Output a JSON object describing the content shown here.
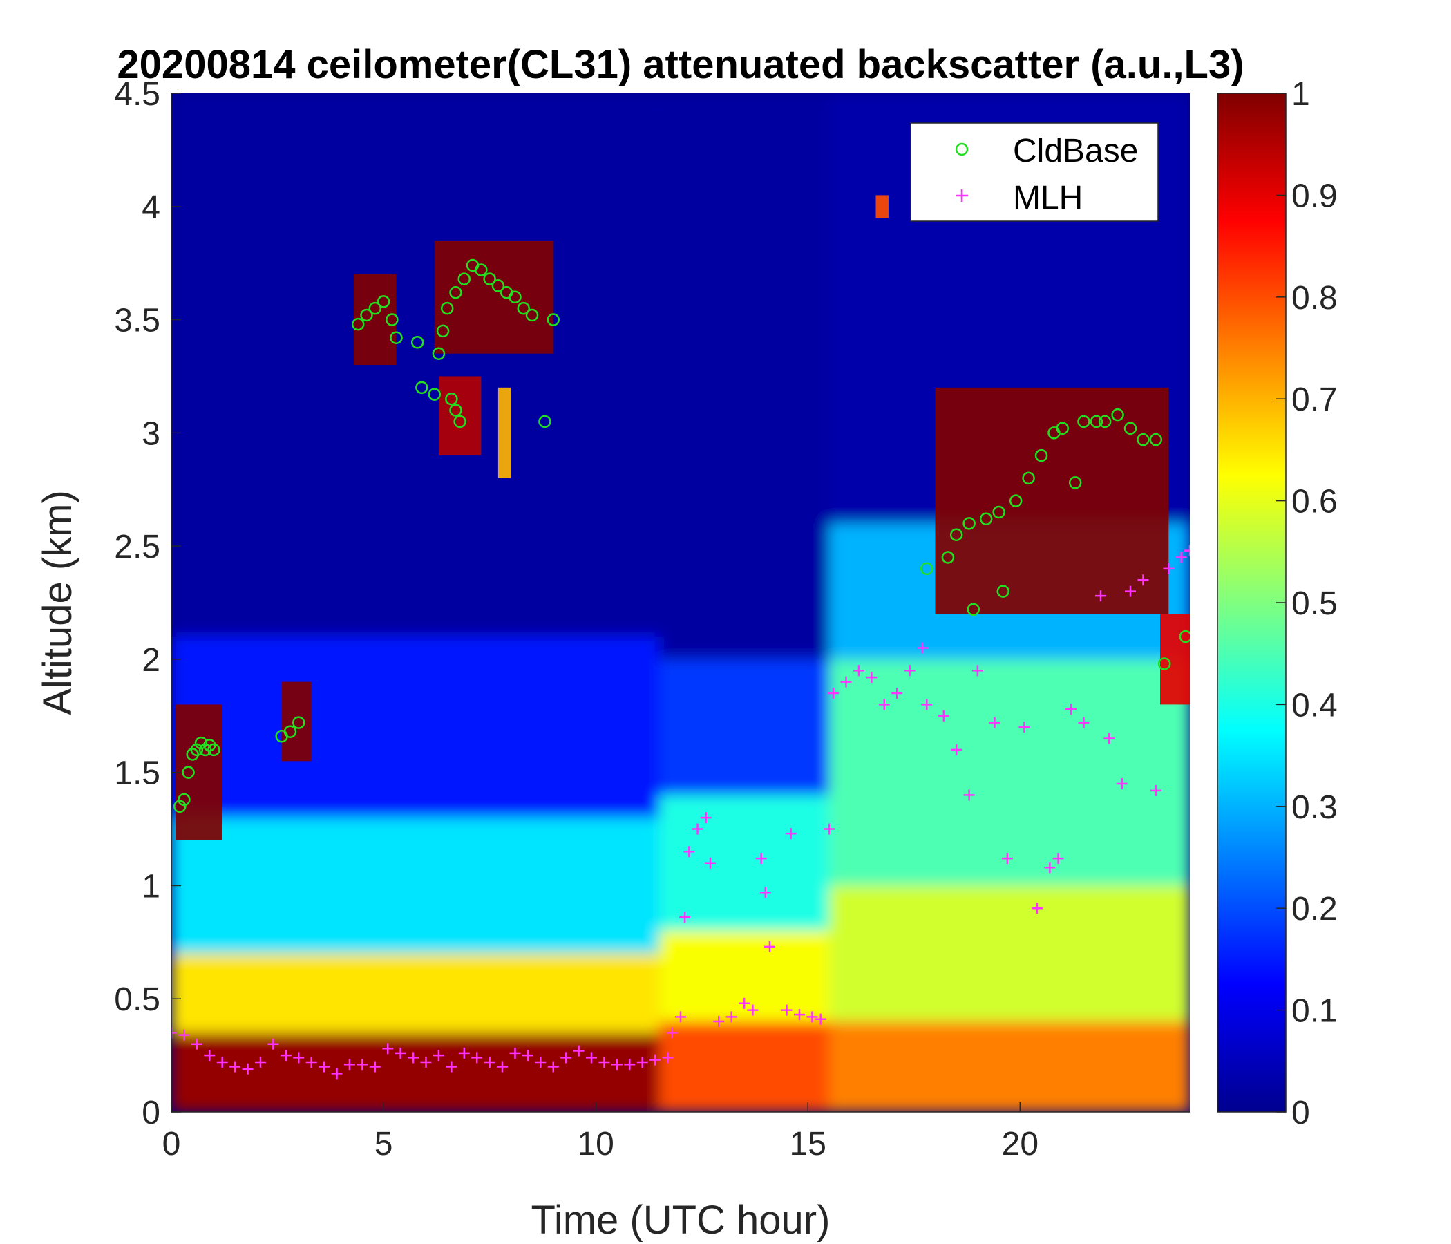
{
  "chart_data": {
    "type": "heatmap",
    "title": "20200814 ceilometer(CL31) attenuated backscatter (a.u.,L3)",
    "xlabel": "Time (UTC hour)",
    "ylabel": "Altitude (km)",
    "xlim": [
      0,
      24
    ],
    "ylim": [
      0,
      4.5
    ],
    "xticks": [
      0,
      5,
      10,
      15,
      20
    ],
    "xtick_labels": [
      "0",
      "5",
      "10",
      "15",
      "20"
    ],
    "yticks": [
      0,
      0.5,
      1,
      1.5,
      2,
      2.5,
      3,
      3.5,
      4,
      4.5
    ],
    "ytick_labels": [
      "0",
      "0.5",
      "1",
      "1.5",
      "2",
      "2.5",
      "3",
      "3.5",
      "4",
      "4.5"
    ],
    "colorbar": {
      "colormap": "jet",
      "clim": [
        0,
        1
      ],
      "ticks": [
        0,
        0.1,
        0.2,
        0.3,
        0.4,
        0.5,
        0.6,
        0.7,
        0.8,
        0.9,
        1
      ],
      "tick_labels": [
        "0",
        "0.1",
        "0.2",
        "0.3",
        "0.4",
        "0.5",
        "0.6",
        "0.7",
        "0.8",
        "0.9",
        "1"
      ]
    },
    "legend": {
      "location": "top-right",
      "entries": [
        {
          "label": "CldBase",
          "marker": "circle",
          "color": "#22e01f"
        },
        {
          "label": "MLH",
          "marker": "plus",
          "color": "#ff33ff"
        }
      ]
    },
    "background_field": {
      "description_levels": "approximate backscatter levels by altitude band",
      "segments": [
        {
          "x": [
            0,
            11.5
          ],
          "levels": [
            [
              0,
              0.35,
              0.98
            ],
            [
              0.35,
              0.7,
              0.65
            ],
            [
              0.7,
              1.3,
              0.35
            ],
            [
              1.3,
              2.1,
              0.15
            ],
            [
              2.1,
              4.5,
              0.02
            ]
          ]
        },
        {
          "x": [
            11.5,
            15.5
          ],
          "levels": [
            [
              0,
              0.4,
              0.8
            ],
            [
              0.4,
              0.8,
              0.62
            ],
            [
              0.8,
              1.4,
              0.4
            ],
            [
              1.4,
              2.0,
              0.18
            ],
            [
              2.0,
              4.5,
              0.02
            ]
          ]
        },
        {
          "x": [
            15.5,
            24
          ],
          "levels": [
            [
              0,
              0.4,
              0.75
            ],
            [
              0.4,
              1.0,
              0.58
            ],
            [
              1.0,
              2.0,
              0.45
            ],
            [
              2.0,
              2.6,
              0.3
            ],
            [
              2.6,
              4.5,
              0.03
            ]
          ]
        }
      ]
    },
    "cloud_patches": [
      {
        "x": [
          0.1,
          1.2
        ],
        "y": [
          1.2,
          1.8
        ],
        "value": 1.0
      },
      {
        "x": [
          2.6,
          3.3
        ],
        "y": [
          1.55,
          1.9
        ],
        "value": 1.0
      },
      {
        "x": [
          4.3,
          5.3
        ],
        "y": [
          3.3,
          3.7
        ],
        "value": 1.0
      },
      {
        "x": [
          6.2,
          9.0
        ],
        "y": [
          3.35,
          3.85
        ],
        "value": 1.0
      },
      {
        "x": [
          6.3,
          7.3
        ],
        "y": [
          2.9,
          3.25
        ],
        "value": 0.95
      },
      {
        "x": [
          7.7,
          8.0
        ],
        "y": [
          2.8,
          3.2
        ],
        "value": 0.7
      },
      {
        "x": [
          16.6,
          16.9
        ],
        "y": [
          3.95,
          4.05
        ],
        "value": 0.8
      },
      {
        "x": [
          18.0,
          23.5
        ],
        "y": [
          2.2,
          3.2
        ],
        "value": 1.0
      },
      {
        "x": [
          23.3,
          24.0
        ],
        "y": [
          1.8,
          2.2
        ],
        "value": 0.9
      }
    ],
    "series": [
      {
        "name": "CldBase",
        "marker": "circle",
        "points": [
          [
            0.2,
            1.35
          ],
          [
            0.3,
            1.38
          ],
          [
            0.4,
            1.5
          ],
          [
            0.5,
            1.58
          ],
          [
            0.6,
            1.6
          ],
          [
            0.7,
            1.63
          ],
          [
            0.8,
            1.6
          ],
          [
            0.9,
            1.62
          ],
          [
            1.0,
            1.6
          ],
          [
            2.6,
            1.66
          ],
          [
            2.8,
            1.68
          ],
          [
            3.0,
            1.72
          ],
          [
            4.4,
            3.48
          ],
          [
            4.6,
            3.52
          ],
          [
            4.8,
            3.55
          ],
          [
            5.0,
            3.58
          ],
          [
            5.2,
            3.5
          ],
          [
            5.3,
            3.42
          ],
          [
            5.8,
            3.4
          ],
          [
            5.9,
            3.2
          ],
          [
            6.2,
            3.17
          ],
          [
            6.3,
            3.35
          ],
          [
            6.4,
            3.45
          ],
          [
            6.5,
            3.55
          ],
          [
            6.6,
            3.15
          ],
          [
            6.7,
            3.1
          ],
          [
            6.8,
            3.05
          ],
          [
            6.7,
            3.62
          ],
          [
            6.9,
            3.68
          ],
          [
            7.1,
            3.74
          ],
          [
            7.3,
            3.72
          ],
          [
            7.5,
            3.68
          ],
          [
            7.7,
            3.65
          ],
          [
            7.9,
            3.62
          ],
          [
            8.1,
            3.6
          ],
          [
            8.3,
            3.55
          ],
          [
            8.5,
            3.52
          ],
          [
            8.8,
            3.05
          ],
          [
            9.0,
            3.5
          ],
          [
            17.8,
            2.4
          ],
          [
            18.3,
            2.45
          ],
          [
            18.5,
            2.55
          ],
          [
            18.8,
            2.6
          ],
          [
            18.9,
            2.22
          ],
          [
            19.2,
            2.62
          ],
          [
            19.5,
            2.65
          ],
          [
            19.6,
            2.3
          ],
          [
            19.9,
            2.7
          ],
          [
            20.2,
            2.8
          ],
          [
            20.5,
            2.9
          ],
          [
            20.8,
            3.0
          ],
          [
            21.0,
            3.02
          ],
          [
            21.3,
            2.78
          ],
          [
            21.5,
            3.05
          ],
          [
            21.8,
            3.05
          ],
          [
            22.0,
            3.05
          ],
          [
            22.3,
            3.08
          ],
          [
            22.6,
            3.02
          ],
          [
            22.9,
            2.97
          ],
          [
            23.2,
            2.97
          ],
          [
            23.4,
            1.98
          ],
          [
            23.9,
            2.1
          ]
        ]
      },
      {
        "name": "MLH",
        "marker": "plus",
        "points": [
          [
            0.0,
            0.35
          ],
          [
            0.3,
            0.34
          ],
          [
            0.6,
            0.3
          ],
          [
            0.9,
            0.25
          ],
          [
            1.2,
            0.22
          ],
          [
            1.5,
            0.2
          ],
          [
            1.8,
            0.19
          ],
          [
            2.1,
            0.22
          ],
          [
            2.4,
            0.3
          ],
          [
            2.7,
            0.25
          ],
          [
            3.0,
            0.24
          ],
          [
            3.3,
            0.22
          ],
          [
            3.6,
            0.2
          ],
          [
            3.9,
            0.17
          ],
          [
            4.2,
            0.21
          ],
          [
            4.5,
            0.21
          ],
          [
            4.8,
            0.2
          ],
          [
            5.1,
            0.28
          ],
          [
            5.4,
            0.26
          ],
          [
            5.7,
            0.24
          ],
          [
            6.0,
            0.22
          ],
          [
            6.3,
            0.25
          ],
          [
            6.6,
            0.2
          ],
          [
            6.9,
            0.26
          ],
          [
            7.2,
            0.24
          ],
          [
            7.5,
            0.22
          ],
          [
            7.8,
            0.2
          ],
          [
            8.1,
            0.26
          ],
          [
            8.4,
            0.25
          ],
          [
            8.7,
            0.22
          ],
          [
            9.0,
            0.2
          ],
          [
            9.3,
            0.24
          ],
          [
            9.6,
            0.27
          ],
          [
            9.9,
            0.24
          ],
          [
            10.2,
            0.22
          ],
          [
            10.5,
            0.21
          ],
          [
            10.8,
            0.21
          ],
          [
            11.1,
            0.22
          ],
          [
            11.4,
            0.23
          ],
          [
            11.7,
            0.24
          ],
          [
            11.8,
            0.35
          ],
          [
            12.0,
            0.42
          ],
          [
            12.1,
            0.86
          ],
          [
            12.2,
            1.15
          ],
          [
            12.4,
            1.25
          ],
          [
            12.6,
            1.3
          ],
          [
            12.7,
            1.1
          ],
          [
            12.9,
            0.4
          ],
          [
            13.2,
            0.42
          ],
          [
            13.5,
            0.48
          ],
          [
            13.7,
            0.45
          ],
          [
            13.9,
            1.12
          ],
          [
            14.0,
            0.97
          ],
          [
            14.1,
            0.73
          ],
          [
            14.5,
            0.45
          ],
          [
            14.8,
            0.43
          ],
          [
            15.1,
            0.42
          ],
          [
            15.3,
            0.41
          ],
          [
            14.6,
            1.23
          ],
          [
            15.5,
            1.25
          ],
          [
            15.6,
            1.85
          ],
          [
            15.9,
            1.9
          ],
          [
            16.2,
            1.95
          ],
          [
            16.5,
            1.92
          ],
          [
            16.8,
            1.8
          ],
          [
            17.1,
            1.85
          ],
          [
            17.4,
            1.95
          ],
          [
            17.7,
            2.05
          ],
          [
            17.8,
            1.8
          ],
          [
            18.2,
            1.75
          ],
          [
            18.5,
            1.6
          ],
          [
            18.8,
            1.4
          ],
          [
            19.0,
            1.95
          ],
          [
            19.4,
            1.72
          ],
          [
            19.7,
            1.12
          ],
          [
            20.1,
            1.7
          ],
          [
            20.4,
            0.9
          ],
          [
            20.7,
            1.08
          ],
          [
            20.9,
            1.12
          ],
          [
            21.2,
            1.78
          ],
          [
            21.5,
            1.72
          ],
          [
            21.9,
            2.28
          ],
          [
            22.1,
            1.65
          ],
          [
            22.4,
            1.45
          ],
          [
            22.6,
            2.3
          ],
          [
            22.9,
            2.35
          ],
          [
            23.2,
            1.42
          ],
          [
            23.5,
            2.4
          ],
          [
            23.8,
            2.45
          ],
          [
            24.0,
            2.48
          ]
        ]
      }
    ]
  }
}
